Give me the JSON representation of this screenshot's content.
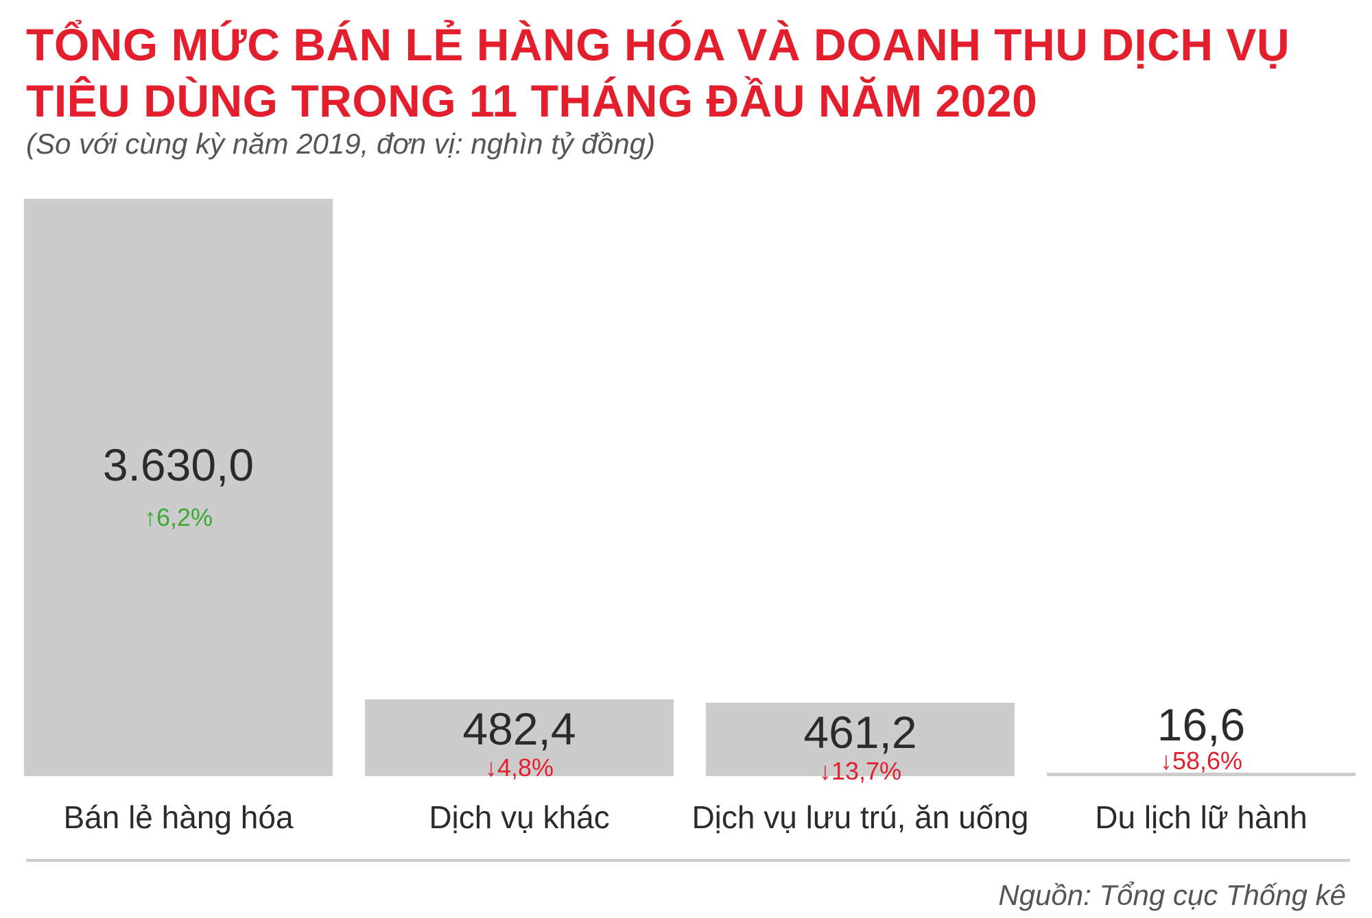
{
  "title": "TỔNG MỨC BÁN LẺ HÀNG HÓA VÀ DOANH THU DỊCH VỤ TIÊU DÙNG TRONG 11 THÁNG ĐẦU NĂM 2020",
  "subtitle": "(So với cùng kỳ năm 2019, đơn vị: nghìn tỷ đồng)",
  "source": "Nguồn: Tổng cục Thống kê",
  "colors": {
    "title": "#e31e2d",
    "bar": "#cccccc",
    "up": "#3aaa35",
    "down": "#e31e2d",
    "text": "#2b2b2b"
  },
  "chart_data": {
    "type": "bar",
    "title": "TỔNG MỨC BÁN LẺ HÀNG HÓA VÀ DOANH THU DỊCH VỤ TIÊU DÙNG TRONG 11 THÁNG ĐẦU NĂM 2020",
    "subtitle": "(So với cùng kỳ năm 2019, đơn vị: nghìn tỷ đồng)",
    "categories": [
      "Bán lẻ hàng hóa",
      "Dịch vụ khác",
      "Dịch vụ lưu trú, ăn uống",
      "Du lịch lữ hành"
    ],
    "values": [
      3630.0,
      482.4,
      461.2,
      16.6
    ],
    "value_labels": [
      "3.630,0",
      "482,4",
      "461,2",
      "16,6"
    ],
    "change_labels": [
      "6,2%",
      "4,8%",
      "13,7%",
      "58,6%"
    ],
    "change_direction": [
      "up",
      "down",
      "down",
      "down"
    ],
    "ylim": [
      0,
      3630
    ],
    "grid": false,
    "legend": "none"
  }
}
